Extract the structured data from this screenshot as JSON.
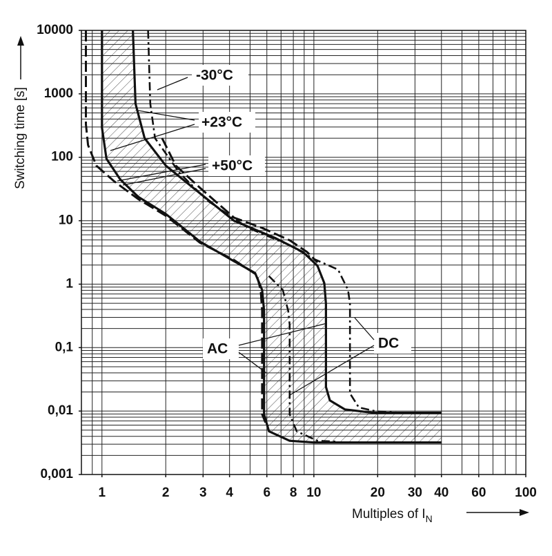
{
  "chart_data": {
    "type": "line",
    "log_x": true,
    "log_y": true,
    "grid": true,
    "xlim": [
      0.8,
      100
    ],
    "ylim": [
      0.001,
      10000
    ],
    "xticks": [
      1,
      2,
      3,
      4,
      6,
      8,
      10,
      20,
      30,
      40,
      60,
      100
    ],
    "yticks": [
      10000,
      1000,
      100,
      10,
      1,
      {
        "value": 0.1,
        "label": "0,1"
      },
      {
        "value": 0.01,
        "label": "0,01"
      },
      {
        "value": 0.001,
        "label": "0,001"
      }
    ],
    "xgrid": [
      0.9,
      1,
      2,
      3,
      4,
      5,
      6,
      7,
      8,
      9,
      10,
      20,
      30,
      40,
      50,
      60,
      70,
      80,
      90,
      100
    ],
    "ygrid": [
      0.001,
      0.002,
      0.003,
      0.004,
      0.005,
      0.006,
      0.007,
      0.008,
      0.009,
      0.01,
      0.02,
      0.03,
      0.04,
      0.05,
      0.06,
      0.07,
      0.08,
      0.09,
      0.1,
      0.2,
      0.3,
      0.4,
      0.5,
      0.6,
      0.7,
      0.8,
      0.9,
      1,
      2,
      3,
      4,
      5,
      6,
      7,
      8,
      9,
      10,
      20,
      30,
      40,
      50,
      60,
      70,
      80,
      90,
      100,
      200,
      300,
      400,
      500,
      600,
      700,
      800,
      900,
      1000,
      2000,
      3000,
      4000,
      5000,
      6000,
      7000,
      8000,
      9000,
      10000
    ],
    "ylabel": "Switching time [s]",
    "xlabel": {
      "text": "Multiples of I",
      "subscript": "N"
    },
    "annotations": [
      "-30°C",
      "+23°C",
      "+50°C",
      "AC",
      "DC"
    ],
    "hatch_between": [
      0,
      1
    ],
    "color": "#111111",
    "series": [
      {
        "style": "solid",
        "x": [
          1.4,
          1.44,
          1.59,
          2,
          2.9,
          4.2,
          6.6,
          8.9,
          10.4,
          11.2,
          11.4,
          11.4,
          11.9,
          14,
          19,
          40
        ],
        "y": [
          10000,
          700,
          200,
          74,
          27,
          10,
          5.3,
          3.2,
          1.95,
          1.04,
          0.49,
          0.024,
          0.0147,
          0.0106,
          0.0094,
          0.0094
        ]
      },
      {
        "style": "solid",
        "x": [
          1,
          1,
          1.05,
          1.22,
          1.48,
          2,
          2.9,
          4.2,
          5.28,
          5.7,
          5.82,
          5.82,
          6.14,
          7.69,
          10,
          40
        ],
        "y": [
          10000,
          292,
          94.6,
          44.7,
          23.9,
          12.8,
          4.7,
          2.3,
          1.5,
          0.81,
          0.38,
          0.0089,
          0.0048,
          0.0034,
          0.0032,
          0.0032
        ]
      },
      {
        "style": "dashed",
        "x": [
          0.84,
          0.84,
          0.86,
          0.94,
          1.14,
          1.48,
          2,
          2.9,
          4.2,
          5.37,
          5.61,
          5.7,
          5.7,
          5.91
        ],
        "y": [
          10000,
          331,
          156,
          74,
          42,
          22,
          12,
          4.5,
          2.4,
          1.4,
          0.81,
          0.38,
          0.0089,
          0.0066
        ]
      },
      {
        "style": "dashed",
        "x": [
          1.92,
          2.23,
          2.9,
          4.2,
          5.7,
          7.7,
          9.3,
          10.4
        ],
        "y": [
          201,
          74,
          33,
          11.2,
          7.7,
          4.9,
          3.2,
          2.2
        ]
      },
      {
        "style": "dashdot",
        "x": [
          1.65,
          1.69,
          1.78,
          2.32,
          3.13,
          4.9,
          7.7,
          10,
          13,
          14.5,
          14.8,
          14.8,
          16.3,
          19.6,
          25.5
        ],
        "y": [
          10000,
          700,
          200,
          57,
          21,
          7.7,
          4.1,
          2.5,
          1.7,
          0.81,
          0.49,
          0.019,
          0.0114,
          0.0099,
          0.0094
        ]
      },
      {
        "style": "dashdot",
        "x": [
          6.14,
          7.13,
          7.57,
          7.69,
          7.69,
          8.3,
          10.4,
          13
        ],
        "y": [
          1.34,
          0.81,
          0.38,
          0.23,
          0.0089,
          0.0048,
          0.0034,
          0.0033
        ]
      }
    ]
  }
}
